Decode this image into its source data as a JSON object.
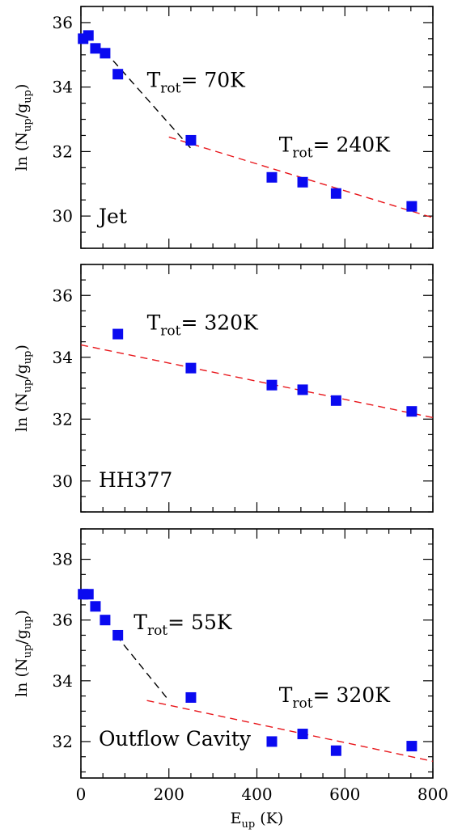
{
  "chart_data": [
    {
      "type": "scatter",
      "panel_label": "Jet",
      "xlim": [
        0,
        800
      ],
      "ylim": [
        29,
        36.5
      ],
      "yticks": [
        30,
        32,
        34,
        36
      ],
      "xticks": [
        0,
        200,
        400,
        600,
        800
      ],
      "ylabel": {
        "prefix": "ln (N",
        "sub1": "up",
        "mid": "/g",
        "sub2": "up",
        "suffix": ")"
      },
      "points": [
        {
          "x": 5,
          "y": 35.5
        },
        {
          "x": 17,
          "y": 35.6
        },
        {
          "x": 33,
          "y": 35.2
        },
        {
          "x": 55,
          "y": 35.05
        },
        {
          "x": 84,
          "y": 34.4
        },
        {
          "x": 250,
          "y": 32.35
        },
        {
          "x": 434,
          "y": 31.2
        },
        {
          "x": 504,
          "y": 31.05
        },
        {
          "x": 580,
          "y": 30.7
        },
        {
          "x": 752,
          "y": 30.3
        }
      ],
      "fits": [
        {
          "color": "#000000",
          "x": [
            55,
            250
          ],
          "y": [
            35.1,
            32.1
          ]
        },
        {
          "color": "#e8161b",
          "x": [
            200,
            800
          ],
          "y": [
            32.45,
            29.95
          ]
        }
      ],
      "annotations": [
        {
          "base": "T",
          "sub": "rot",
          "rest": "= 70K",
          "x": 150,
          "y": 34.0
        },
        {
          "base": "T",
          "sub": "rot",
          "rest": "= 240K",
          "x": 450,
          "y": 32.0
        }
      ]
    },
    {
      "type": "scatter",
      "panel_label": "HH377",
      "xlim": [
        0,
        800
      ],
      "ylim": [
        29,
        37
      ],
      "yticks": [
        30,
        32,
        34,
        36
      ],
      "xticks": [
        0,
        200,
        400,
        600,
        800
      ],
      "ylabel": {
        "prefix": "ln (N",
        "sub1": "up",
        "mid": "/g",
        "sub2": "up",
        "suffix": ")"
      },
      "points": [
        {
          "x": 84,
          "y": 34.75
        },
        {
          "x": 250,
          "y": 33.65
        },
        {
          "x": 434,
          "y": 33.1
        },
        {
          "x": 504,
          "y": 32.95
        },
        {
          "x": 580,
          "y": 32.6
        },
        {
          "x": 752,
          "y": 32.25
        }
      ],
      "fits": [
        {
          "color": "#e8161b",
          "x": [
            0,
            800
          ],
          "y": [
            34.4,
            32.05
          ]
        }
      ],
      "annotations": [
        {
          "base": "T",
          "sub": "rot",
          "rest": "= 320K",
          "x": 150,
          "y": 34.9
        }
      ]
    },
    {
      "type": "scatter",
      "panel_label": "Outflow Cavity",
      "xlim": [
        0,
        800
      ],
      "ylim": [
        30.8,
        39
      ],
      "yticks": [
        32,
        34,
        36,
        38
      ],
      "xticks": [
        0,
        200,
        400,
        600,
        800
      ],
      "xlabel": {
        "base": "E",
        "sub": "up",
        "rest": " (K)"
      },
      "ylabel": {
        "prefix": "ln (N",
        "sub1": "up",
        "mid": "/g",
        "sub2": "up",
        "suffix": ")"
      },
      "points": [
        {
          "x": 5,
          "y": 36.85
        },
        {
          "x": 17,
          "y": 36.85
        },
        {
          "x": 33,
          "y": 36.45
        },
        {
          "x": 55,
          "y": 36.0
        },
        {
          "x": 84,
          "y": 35.5
        },
        {
          "x": 250,
          "y": 33.45
        },
        {
          "x": 434,
          "y": 32.0
        },
        {
          "x": 504,
          "y": 32.25
        },
        {
          "x": 580,
          "y": 31.7
        },
        {
          "x": 752,
          "y": 31.85
        }
      ],
      "fits": [
        {
          "color": "#000000",
          "x": [
            80,
            200
          ],
          "y": [
            35.5,
            33.35
          ]
        },
        {
          "color": "#e8161b",
          "x": [
            150,
            800
          ],
          "y": [
            33.35,
            31.35
          ]
        }
      ],
      "annotations": [
        {
          "base": "T",
          "sub": "rot",
          "rest": "= 55K",
          "x": 120,
          "y": 35.7
        },
        {
          "base": "T",
          "sub": "rot",
          "rest": "= 320K",
          "x": 450,
          "y": 33.3
        }
      ]
    }
  ]
}
